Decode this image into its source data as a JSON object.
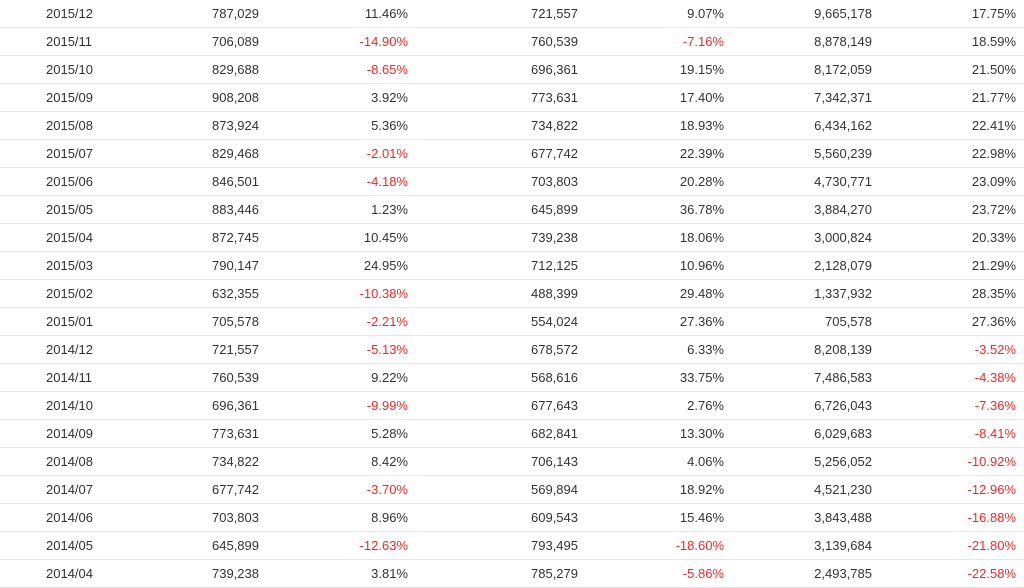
{
  "colors": {
    "text": "#333333",
    "negative": "#ff2222",
    "row_border": "#e6e6e6"
  },
  "rows": [
    [
      "2015/12",
      "787,029",
      "11.46%",
      "721,557",
      "9.07%",
      "9,665,178",
      "17.75%"
    ],
    [
      "2015/11",
      "706,089",
      "-14.90%",
      "760,539",
      "-7.16%",
      "8,878,149",
      "18.59%"
    ],
    [
      "2015/10",
      "829,688",
      "-8.65%",
      "696,361",
      "19.15%",
      "8,172,059",
      "21.50%"
    ],
    [
      "2015/09",
      "908,208",
      "3.92%",
      "773,631",
      "17.40%",
      "7,342,371",
      "21.77%"
    ],
    [
      "2015/08",
      "873,924",
      "5.36%",
      "734,822",
      "18.93%",
      "6,434,162",
      "22.41%"
    ],
    [
      "2015/07",
      "829,468",
      "-2.01%",
      "677,742",
      "22.39%",
      "5,560,239",
      "22.98%"
    ],
    [
      "2015/06",
      "846,501",
      "-4.18%",
      "703,803",
      "20.28%",
      "4,730,771",
      "23.09%"
    ],
    [
      "2015/05",
      "883,446",
      "1.23%",
      "645,899",
      "36.78%",
      "3,884,270",
      "23.72%"
    ],
    [
      "2015/04",
      "872,745",
      "10.45%",
      "739,238",
      "18.06%",
      "3,000,824",
      "20.33%"
    ],
    [
      "2015/03",
      "790,147",
      "24.95%",
      "712,125",
      "10.96%",
      "2,128,079",
      "21.29%"
    ],
    [
      "2015/02",
      "632,355",
      "-10.38%",
      "488,399",
      "29.48%",
      "1,337,932",
      "28.35%"
    ],
    [
      "2015/01",
      "705,578",
      "-2.21%",
      "554,024",
      "27.36%",
      "705,578",
      "27.36%"
    ],
    [
      "2014/12",
      "721,557",
      "-5.13%",
      "678,572",
      "6.33%",
      "8,208,139",
      "-3.52%"
    ],
    [
      "2014/11",
      "760,539",
      "9.22%",
      "568,616",
      "33.75%",
      "7,486,583",
      "-4.38%"
    ],
    [
      "2014/10",
      "696,361",
      "-9.99%",
      "677,643",
      "2.76%",
      "6,726,043",
      "-7.36%"
    ],
    [
      "2014/09",
      "773,631",
      "5.28%",
      "682,841",
      "13.30%",
      "6,029,683",
      "-8.41%"
    ],
    [
      "2014/08",
      "734,822",
      "8.42%",
      "706,143",
      "4.06%",
      "5,256,052",
      "-10.92%"
    ],
    [
      "2014/07",
      "677,742",
      "-3.70%",
      "569,894",
      "18.92%",
      "4,521,230",
      "-12.96%"
    ],
    [
      "2014/06",
      "703,803",
      "8.96%",
      "609,543",
      "15.46%",
      "3,843,488",
      "-16.88%"
    ],
    [
      "2014/05",
      "645,899",
      "-12.63%",
      "793,495",
      "-18.60%",
      "3,139,684",
      "-21.80%"
    ],
    [
      "2014/04",
      "739,238",
      "3.81%",
      "785,279",
      "-5.86%",
      "2,493,785",
      "-22.58%"
    ]
  ]
}
